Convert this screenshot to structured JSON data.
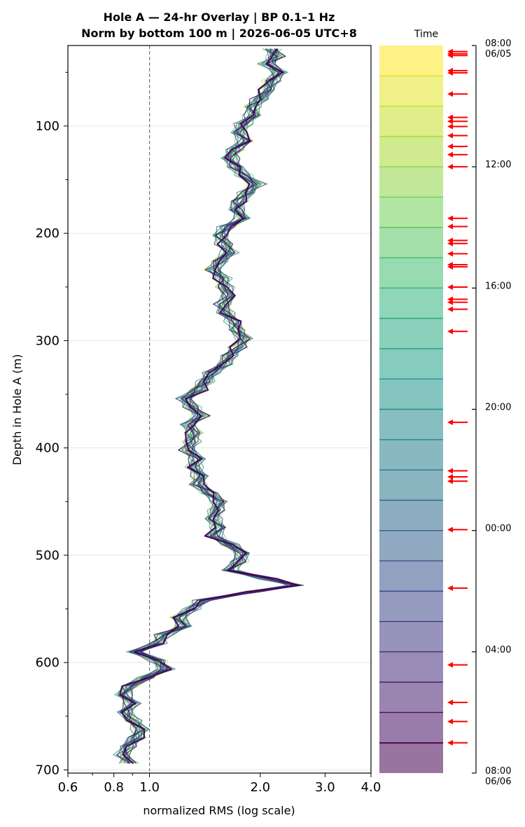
{
  "chart_data": {
    "type": "line",
    "title_line1": "Hole A — 24-hr Overlay  |  BP 0.1–1 Hz",
    "title_line2": "Norm by bottom 100 m  |  2026-06-05 UTC+8",
    "xlabel": "normalized RMS  (log scale)",
    "ylabel": "Depth in Hole A (m)",
    "x_scale": "log",
    "xlim": [
      0.6,
      4.0
    ],
    "ylim": [
      703,
      25
    ],
    "y_inverted": true,
    "x_ticks": [
      0.6,
      0.8,
      1.0,
      2.0,
      3.0,
      4.0
    ],
    "x_tick_labels": [
      "0.6",
      "0.8",
      "1.0",
      "2.0",
      "3.0",
      "4.0"
    ],
    "y_ticks": [
      100,
      200,
      300,
      400,
      500,
      600,
      700
    ],
    "y_tick_labels": [
      "100",
      "200",
      "300",
      "400",
      "500",
      "600",
      "700"
    ],
    "reference_line_x": 1.0,
    "grid": "horizontal",
    "colormap": "viridis",
    "n_traces": 24,
    "time_axis": {
      "header": "Time",
      "range_hours": [
        0,
        24
      ],
      "ticks": [
        {
          "hour": 0,
          "line1": "08:00",
          "line2": "06/05"
        },
        {
          "hour": 4,
          "line1": "12:00",
          "line2": ""
        },
        {
          "hour": 8,
          "line1": "16:00",
          "line2": ""
        },
        {
          "hour": 12,
          "line1": "20:00",
          "line2": ""
        },
        {
          "hour": 16,
          "line1": "00:00",
          "line2": ""
        },
        {
          "hour": 20,
          "line1": "04:00",
          "line2": ""
        },
        {
          "hour": 24,
          "line1": "08:00",
          "line2": "06/06"
        }
      ],
      "event_arrow_hours": [
        0.2,
        0.27,
        0.33,
        0.83,
        0.9,
        1.6,
        2.37,
        2.5,
        2.67,
        2.97,
        3.33,
        3.6,
        4.0,
        5.7,
        5.97,
        6.43,
        6.53,
        6.87,
        7.23,
        7.3,
        7.97,
        8.37,
        8.47,
        8.7,
        9.43,
        12.43,
        14.03,
        14.23,
        14.37,
        15.97,
        17.9,
        20.43,
        21.67,
        22.3,
        23.0
      ],
      "arrow_color": "#ff0000"
    },
    "series_base": {
      "depth_m": [
        28,
        35,
        42,
        50,
        58,
        66,
        75,
        82,
        90,
        98,
        106,
        114,
        122,
        130,
        138,
        146,
        154,
        162,
        170,
        178,
        186,
        194,
        202,
        210,
        218,
        226,
        234,
        242,
        250,
        258,
        266,
        274,
        282,
        290,
        298,
        306,
        314,
        322,
        330,
        338,
        346,
        354,
        362,
        370,
        378,
        386,
        394,
        402,
        410,
        418,
        426,
        434,
        442,
        450,
        458,
        466,
        474,
        482,
        490,
        498,
        506,
        514,
        522,
        528,
        534,
        542,
        550,
        558,
        566,
        574,
        582,
        590,
        598,
        606,
        614,
        622,
        630,
        638,
        646,
        654,
        662,
        670,
        678,
        686,
        694
      ],
      "rms": [
        2.15,
        2.2,
        2.1,
        2.25,
        2.15,
        2.1,
        2.0,
        1.9,
        1.92,
        1.8,
        1.75,
        1.82,
        1.7,
        1.65,
        1.72,
        1.8,
        1.95,
        1.85,
        1.75,
        1.72,
        1.8,
        1.62,
        1.55,
        1.6,
        1.65,
        1.55,
        1.5,
        1.58,
        1.6,
        1.65,
        1.58,
        1.6,
        1.7,
        1.72,
        1.8,
        1.75,
        1.65,
        1.6,
        1.48,
        1.42,
        1.35,
        1.25,
        1.3,
        1.38,
        1.28,
        1.32,
        1.3,
        1.28,
        1.35,
        1.32,
        1.38,
        1.35,
        1.45,
        1.55,
        1.52,
        1.48,
        1.55,
        1.5,
        1.65,
        1.8,
        1.75,
        1.65,
        2.1,
        2.5,
        1.9,
        1.4,
        1.3,
        1.2,
        1.25,
        1.1,
        1.05,
        0.92,
        1.05,
        1.1,
        0.98,
        0.88,
        0.85,
        0.9,
        0.86,
        0.9,
        0.95,
        0.92,
        0.87,
        0.85,
        0.88
      ]
    }
  }
}
